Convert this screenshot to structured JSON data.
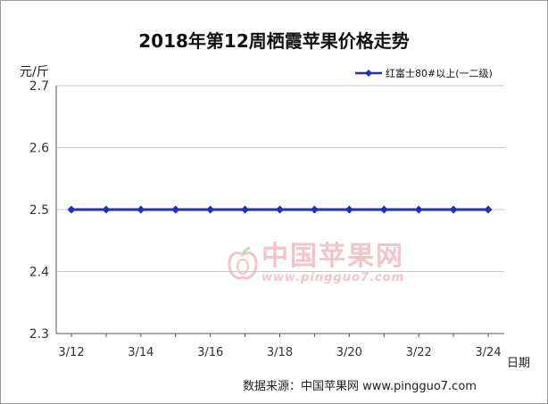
{
  "chart_data": {
    "type": "line",
    "title": "2018年第12周栖霞苹果价格走势",
    "ylabel": "元/斤",
    "xlabel": "日期",
    "ylim": [
      2.3,
      2.7
    ],
    "yticks": [
      "2.3",
      "2.4",
      "2.5",
      "2.6",
      "2.7"
    ],
    "categories": [
      "3/12",
      "3/13",
      "3/14",
      "3/15",
      "3/16",
      "3/17",
      "3/18",
      "3/19",
      "3/20",
      "3/21",
      "3/22",
      "3/23",
      "3/24"
    ],
    "xtick_labels": [
      "3/12",
      "3/14",
      "3/16",
      "3/18",
      "3/20",
      "3/22",
      "3/24"
    ],
    "series": [
      {
        "name": "红富士80#以上(一二级)",
        "values": [
          2.5,
          2.5,
          2.5,
          2.5,
          2.5,
          2.5,
          2.5,
          2.5,
          2.5,
          2.5,
          2.5,
          2.5,
          2.5
        ],
        "color": "#1f2fbf"
      }
    ],
    "grid": true,
    "legend": "top-right"
  },
  "watermark": {
    "name": "中国苹果网",
    "url": "www.pingguo7.com",
    "icon": "apple-logo-icon",
    "color": "#e98a9a"
  },
  "source": "数据来源：中国苹果网 www.pingguo7.com"
}
